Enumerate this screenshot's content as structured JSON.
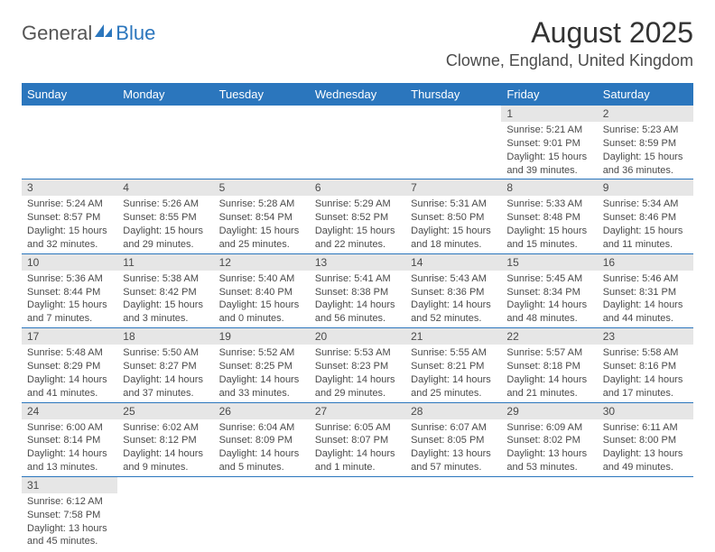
{
  "logo": {
    "general": "General",
    "blue": "Blue"
  },
  "header": {
    "title": "August 2025",
    "location": "Clowne, England, United Kingdom"
  },
  "colors": {
    "header_bg": "#2b76bd",
    "header_fg": "#ffffff",
    "daynum_bg": "#e6e6e6",
    "cell_border": "#2b76bd",
    "text": "#4a4a4a"
  },
  "daynames": [
    "Sunday",
    "Monday",
    "Tuesday",
    "Wednesday",
    "Thursday",
    "Friday",
    "Saturday"
  ],
  "weeks": [
    [
      null,
      null,
      null,
      null,
      null,
      {
        "n": "1",
        "sunrise": "Sunrise: 5:21 AM",
        "sunset": "Sunset: 9:01 PM",
        "daylight": "Daylight: 15 hours and 39 minutes."
      },
      {
        "n": "2",
        "sunrise": "Sunrise: 5:23 AM",
        "sunset": "Sunset: 8:59 PM",
        "daylight": "Daylight: 15 hours and 36 minutes."
      }
    ],
    [
      {
        "n": "3",
        "sunrise": "Sunrise: 5:24 AM",
        "sunset": "Sunset: 8:57 PM",
        "daylight": "Daylight: 15 hours and 32 minutes."
      },
      {
        "n": "4",
        "sunrise": "Sunrise: 5:26 AM",
        "sunset": "Sunset: 8:55 PM",
        "daylight": "Daylight: 15 hours and 29 minutes."
      },
      {
        "n": "5",
        "sunrise": "Sunrise: 5:28 AM",
        "sunset": "Sunset: 8:54 PM",
        "daylight": "Daylight: 15 hours and 25 minutes."
      },
      {
        "n": "6",
        "sunrise": "Sunrise: 5:29 AM",
        "sunset": "Sunset: 8:52 PM",
        "daylight": "Daylight: 15 hours and 22 minutes."
      },
      {
        "n": "7",
        "sunrise": "Sunrise: 5:31 AM",
        "sunset": "Sunset: 8:50 PM",
        "daylight": "Daylight: 15 hours and 18 minutes."
      },
      {
        "n": "8",
        "sunrise": "Sunrise: 5:33 AM",
        "sunset": "Sunset: 8:48 PM",
        "daylight": "Daylight: 15 hours and 15 minutes."
      },
      {
        "n": "9",
        "sunrise": "Sunrise: 5:34 AM",
        "sunset": "Sunset: 8:46 PM",
        "daylight": "Daylight: 15 hours and 11 minutes."
      }
    ],
    [
      {
        "n": "10",
        "sunrise": "Sunrise: 5:36 AM",
        "sunset": "Sunset: 8:44 PM",
        "daylight": "Daylight: 15 hours and 7 minutes."
      },
      {
        "n": "11",
        "sunrise": "Sunrise: 5:38 AM",
        "sunset": "Sunset: 8:42 PM",
        "daylight": "Daylight: 15 hours and 3 minutes."
      },
      {
        "n": "12",
        "sunrise": "Sunrise: 5:40 AM",
        "sunset": "Sunset: 8:40 PM",
        "daylight": "Daylight: 15 hours and 0 minutes."
      },
      {
        "n": "13",
        "sunrise": "Sunrise: 5:41 AM",
        "sunset": "Sunset: 8:38 PM",
        "daylight": "Daylight: 14 hours and 56 minutes."
      },
      {
        "n": "14",
        "sunrise": "Sunrise: 5:43 AM",
        "sunset": "Sunset: 8:36 PM",
        "daylight": "Daylight: 14 hours and 52 minutes."
      },
      {
        "n": "15",
        "sunrise": "Sunrise: 5:45 AM",
        "sunset": "Sunset: 8:34 PM",
        "daylight": "Daylight: 14 hours and 48 minutes."
      },
      {
        "n": "16",
        "sunrise": "Sunrise: 5:46 AM",
        "sunset": "Sunset: 8:31 PM",
        "daylight": "Daylight: 14 hours and 44 minutes."
      }
    ],
    [
      {
        "n": "17",
        "sunrise": "Sunrise: 5:48 AM",
        "sunset": "Sunset: 8:29 PM",
        "daylight": "Daylight: 14 hours and 41 minutes."
      },
      {
        "n": "18",
        "sunrise": "Sunrise: 5:50 AM",
        "sunset": "Sunset: 8:27 PM",
        "daylight": "Daylight: 14 hours and 37 minutes."
      },
      {
        "n": "19",
        "sunrise": "Sunrise: 5:52 AM",
        "sunset": "Sunset: 8:25 PM",
        "daylight": "Daylight: 14 hours and 33 minutes."
      },
      {
        "n": "20",
        "sunrise": "Sunrise: 5:53 AM",
        "sunset": "Sunset: 8:23 PM",
        "daylight": "Daylight: 14 hours and 29 minutes."
      },
      {
        "n": "21",
        "sunrise": "Sunrise: 5:55 AM",
        "sunset": "Sunset: 8:21 PM",
        "daylight": "Daylight: 14 hours and 25 minutes."
      },
      {
        "n": "22",
        "sunrise": "Sunrise: 5:57 AM",
        "sunset": "Sunset: 8:18 PM",
        "daylight": "Daylight: 14 hours and 21 minutes."
      },
      {
        "n": "23",
        "sunrise": "Sunrise: 5:58 AM",
        "sunset": "Sunset: 8:16 PM",
        "daylight": "Daylight: 14 hours and 17 minutes."
      }
    ],
    [
      {
        "n": "24",
        "sunrise": "Sunrise: 6:00 AM",
        "sunset": "Sunset: 8:14 PM",
        "daylight": "Daylight: 14 hours and 13 minutes."
      },
      {
        "n": "25",
        "sunrise": "Sunrise: 6:02 AM",
        "sunset": "Sunset: 8:12 PM",
        "daylight": "Daylight: 14 hours and 9 minutes."
      },
      {
        "n": "26",
        "sunrise": "Sunrise: 6:04 AM",
        "sunset": "Sunset: 8:09 PM",
        "daylight": "Daylight: 14 hours and 5 minutes."
      },
      {
        "n": "27",
        "sunrise": "Sunrise: 6:05 AM",
        "sunset": "Sunset: 8:07 PM",
        "daylight": "Daylight: 14 hours and 1 minute."
      },
      {
        "n": "28",
        "sunrise": "Sunrise: 6:07 AM",
        "sunset": "Sunset: 8:05 PM",
        "daylight": "Daylight: 13 hours and 57 minutes."
      },
      {
        "n": "29",
        "sunrise": "Sunrise: 6:09 AM",
        "sunset": "Sunset: 8:02 PM",
        "daylight": "Daylight: 13 hours and 53 minutes."
      },
      {
        "n": "30",
        "sunrise": "Sunrise: 6:11 AM",
        "sunset": "Sunset: 8:00 PM",
        "daylight": "Daylight: 13 hours and 49 minutes."
      }
    ],
    [
      {
        "n": "31",
        "sunrise": "Sunrise: 6:12 AM",
        "sunset": "Sunset: 7:58 PM",
        "daylight": "Daylight: 13 hours and 45 minutes."
      },
      null,
      null,
      null,
      null,
      null,
      null
    ]
  ]
}
